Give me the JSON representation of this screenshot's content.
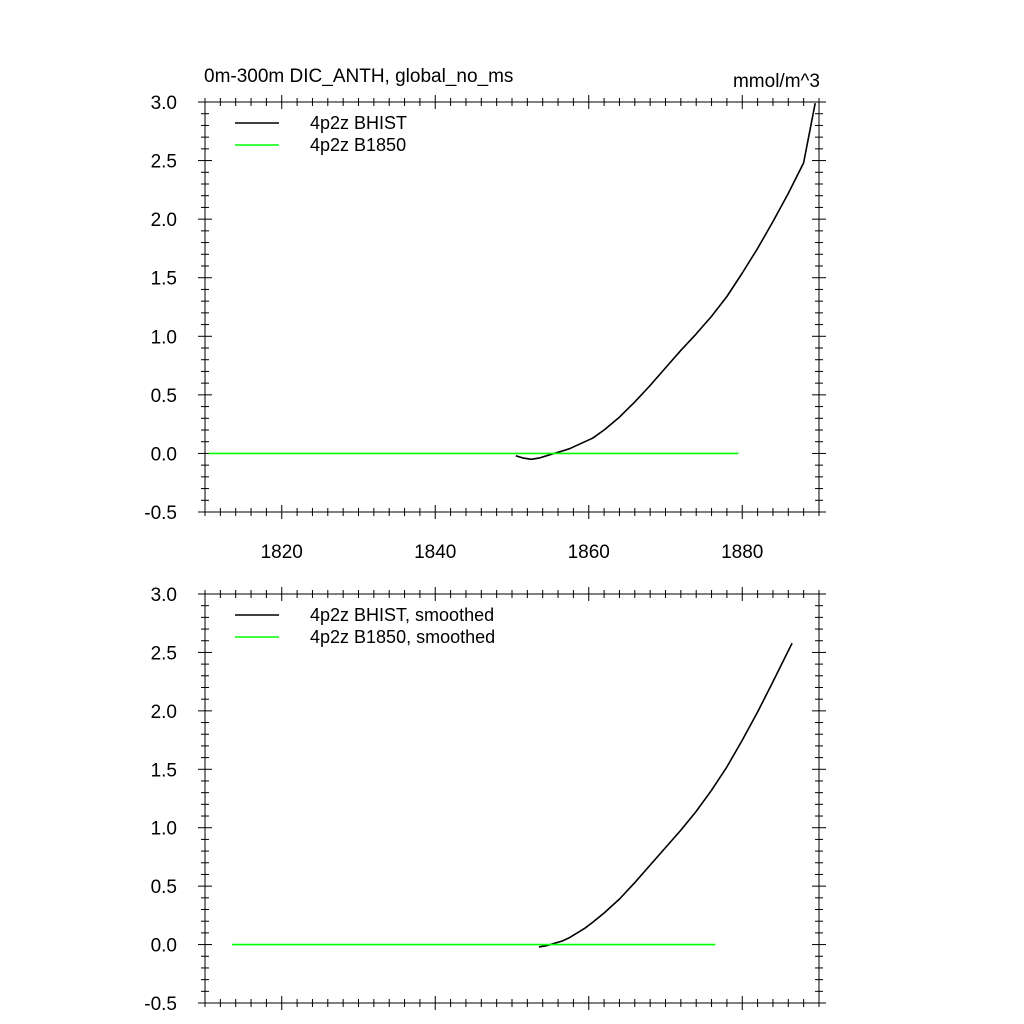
{
  "header": {
    "title": "0m-300m DIC_ANTH, global_no_ms",
    "units": "mmol/m^3"
  },
  "chart_data": [
    {
      "type": "line",
      "title": "0m-300m DIC_ANTH, global_no_ms",
      "units": "mmol/m^3",
      "xlim": [
        1810,
        1890
      ],
      "ylim": [
        -0.5,
        3.0
      ],
      "x_major_ticks": [
        1820,
        1840,
        1860,
        1880
      ],
      "y_major_ticks": [
        -0.5,
        0.0,
        0.5,
        1.0,
        1.5,
        2.0,
        2.5,
        3.0
      ],
      "y_tick_labels": [
        "-0.5",
        "0.0",
        "0.5",
        "1.0",
        "1.5",
        "2.0",
        "2.5",
        "3.0"
      ],
      "x_tick_labels": [
        "1820",
        "1840",
        "1860",
        "1880"
      ],
      "show_x_tick_labels": true,
      "grid": false,
      "legend_position": "top-left",
      "series": [
        {
          "name": "4p2z BHIST",
          "color": "#000000",
          "x": [
            1850.5,
            1851.5,
            1852.5,
            1853.5,
            1854.5,
            1855.5,
            1856.5,
            1857.5,
            1858.5,
            1859.5,
            1860.5,
            1862,
            1864,
            1866,
            1868,
            1870,
            1872,
            1874,
            1876,
            1878,
            1880,
            1882,
            1884,
            1886,
            1888,
            1889.5
          ],
          "y": [
            -0.02,
            -0.04,
            -0.05,
            -0.04,
            -0.02,
            0.0,
            0.02,
            0.04,
            0.07,
            0.1,
            0.13,
            0.2,
            0.31,
            0.44,
            0.58,
            0.73,
            0.88,
            1.02,
            1.17,
            1.34,
            1.54,
            1.75,
            1.98,
            2.22,
            2.48,
            2.99
          ]
        },
        {
          "name": "4p2z B1850",
          "color": "#00ff00",
          "x": [
            1810.5,
            1879.5
          ],
          "y": [
            0.0,
            0.0
          ]
        }
      ]
    },
    {
      "type": "line",
      "title": "",
      "xlim": [
        1810,
        1890
      ],
      "ylim": [
        -0.5,
        3.0
      ],
      "x_major_ticks": [
        1820,
        1840,
        1860,
        1880
      ],
      "y_major_ticks": [
        -0.5,
        0.0,
        0.5,
        1.0,
        1.5,
        2.0,
        2.5,
        3.0
      ],
      "y_tick_labels": [
        "-0.5",
        "0.0",
        "0.5",
        "1.0",
        "1.5",
        "2.0",
        "2.5",
        "3.0"
      ],
      "x_tick_labels": [],
      "show_x_tick_labels": false,
      "grid": false,
      "legend_position": "top-left",
      "series": [
        {
          "name": "4p2z BHIST, smoothed",
          "color": "#000000",
          "x": [
            1853.5,
            1854.5,
            1855.5,
            1856.5,
            1857.5,
            1858.5,
            1859.5,
            1860.5,
            1862,
            1864,
            1866,
            1868,
            1870,
            1872,
            1874,
            1876,
            1878,
            1880,
            1882,
            1884,
            1886.5
          ],
          "y": [
            -0.02,
            -0.01,
            0.01,
            0.03,
            0.06,
            0.1,
            0.14,
            0.19,
            0.27,
            0.39,
            0.53,
            0.68,
            0.83,
            0.98,
            1.14,
            1.32,
            1.52,
            1.75,
            1.99,
            2.25,
            2.58
          ]
        },
        {
          "name": "4p2z B1850, smoothed",
          "color": "#00ff00",
          "x": [
            1813.5,
            1876.5
          ],
          "y": [
            0.0,
            0.0
          ]
        }
      ]
    }
  ]
}
